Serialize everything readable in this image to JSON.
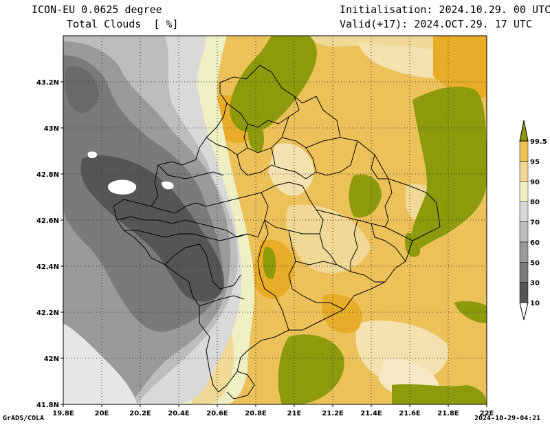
{
  "header": {
    "model": "ICON-EU 0.0625 degree",
    "variable": "Total Clouds  [ %]",
    "init": "Initialisation: 2024.10.29. 00 UTC",
    "valid": "Valid(+17): 2024.OCT.29. 17 UTC"
  },
  "footer": {
    "software": "GrADS/COLA",
    "timestamp": "2024-10-29-04:21"
  },
  "map": {
    "lon_range": [
      19.8,
      22.0
    ],
    "lat_range": [
      41.8,
      43.4
    ],
    "x_ticks": [
      "19.8E",
      "20E",
      "20.2E",
      "20.4E",
      "20.6E",
      "20.8E",
      "21E",
      "21.2E",
      "21.4E",
      "21.6E",
      "21.8E",
      "22E"
    ],
    "y_ticks": [
      "41.8N",
      "42N",
      "42.2N",
      "42.4N",
      "42.6N",
      "42.8N",
      "43N",
      "43.2N"
    ],
    "gridlines": "dotted"
  },
  "colorbar": {
    "levels": [
      "10",
      "30",
      "50",
      "60",
      "70",
      "80",
      "90",
      "95",
      "99.5"
    ],
    "colors": [
      "#555555",
      "#7a7a7a",
      "#9a9a9a",
      "#bdbdbd",
      "#d9d9d9",
      "#efefc4",
      "#f0d996",
      "#ecc15a",
      "#e8ad28",
      "#8c9a0c"
    ]
  }
}
